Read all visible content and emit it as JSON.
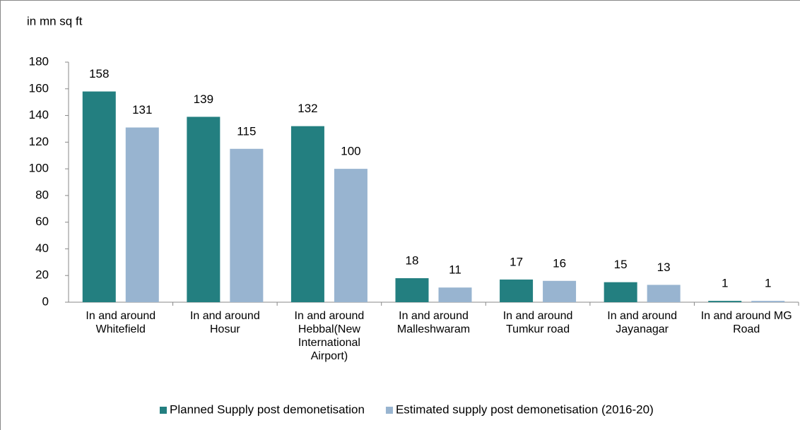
{
  "chart_data": {
    "type": "bar",
    "title": "in mn sq ft",
    "categories": [
      "In and around Whitefield",
      "In and around Hosur",
      "In and around Hebbal(New International Airport)",
      "In and around Malleshwaram",
      "In and around Tumkur road",
      "In and around Jayanagar",
      "In and around MG Road"
    ],
    "series": [
      {
        "name": "Planned Supply post demonetisation",
        "color": "#237f80",
        "values": [
          158,
          139,
          132,
          18,
          17,
          15,
          1
        ]
      },
      {
        "name": "Estimated supply post demonetisation (2016-20)",
        "color": "#98b4d0",
        "values": [
          131,
          115,
          100,
          11,
          16,
          13,
          1
        ]
      }
    ],
    "ylim": [
      0,
      180
    ],
    "yticks": [
      0,
      20,
      40,
      60,
      80,
      100,
      120,
      140,
      160,
      180
    ],
    "legend": "bottom"
  }
}
